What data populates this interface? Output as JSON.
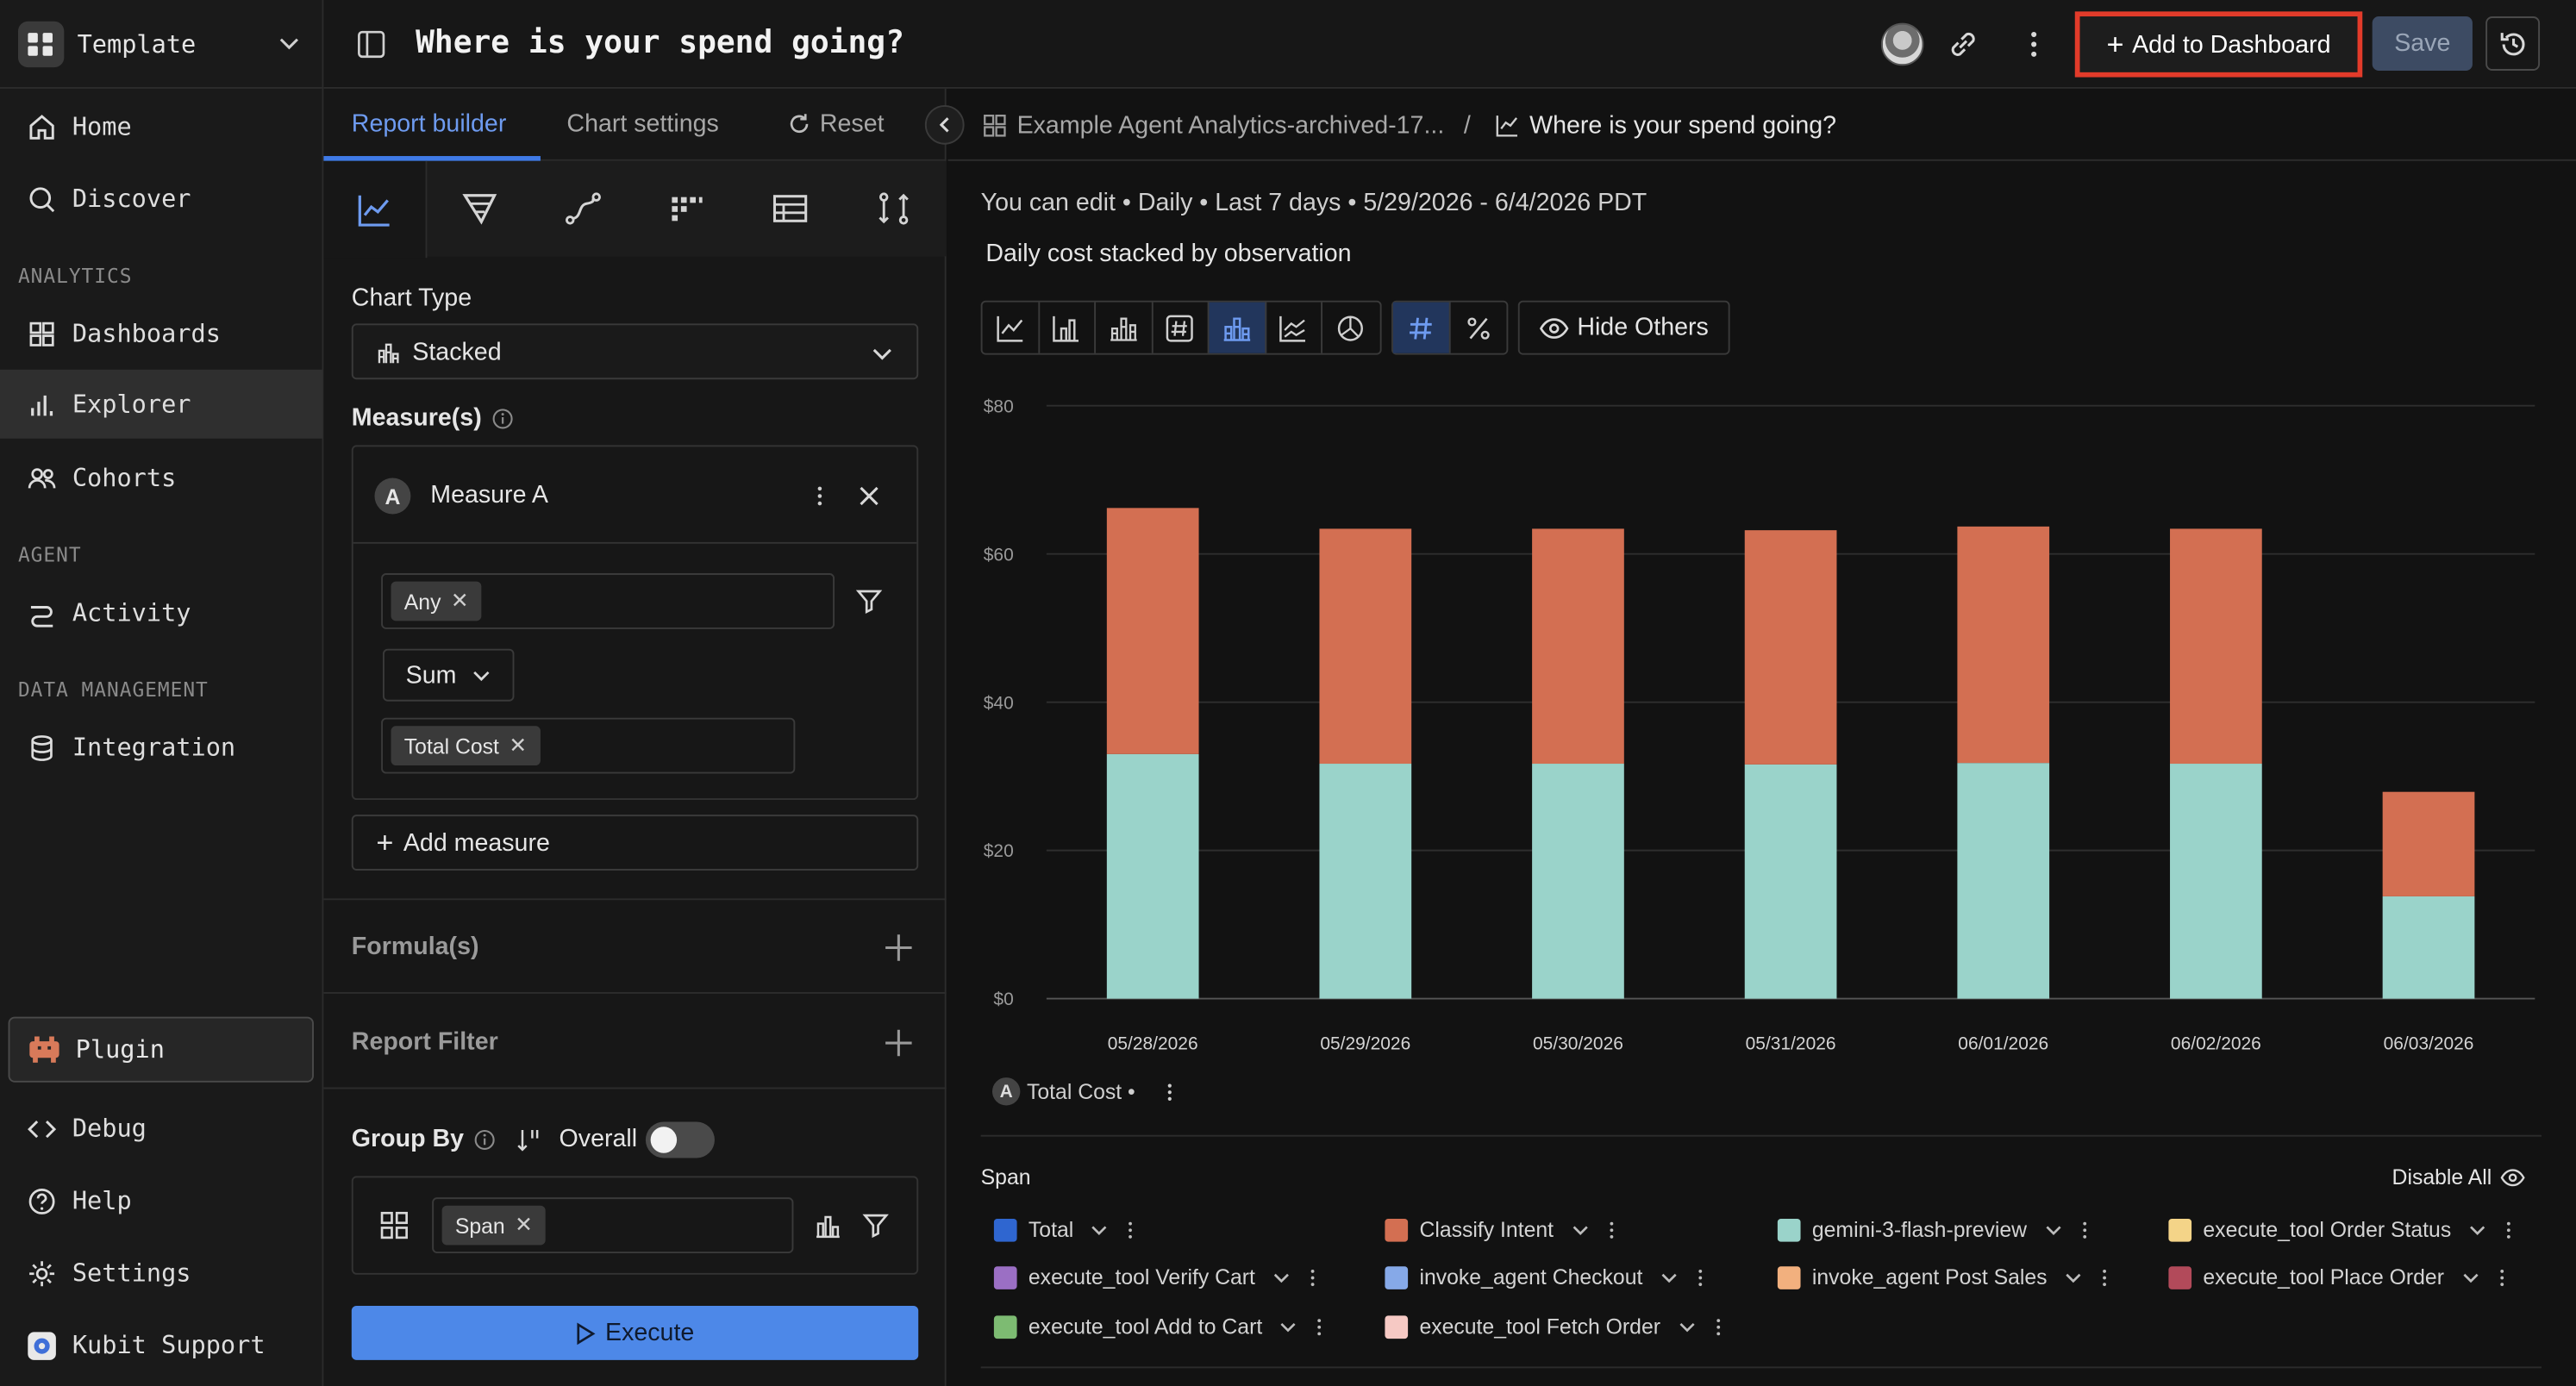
{
  "workspace": {
    "name": "Template"
  },
  "sidebar": {
    "items": [
      {
        "label": "Home",
        "icon": "home-icon"
      },
      {
        "label": "Discover",
        "icon": "search-icon"
      },
      {
        "label": "Dashboards",
        "icon": "dashboard-icon"
      },
      {
        "label": "Explorer",
        "icon": "bar-chart-icon"
      },
      {
        "label": "Cohorts",
        "icon": "users-icon"
      },
      {
        "label": "Activity",
        "icon": "activity-icon"
      },
      {
        "label": "Integration",
        "icon": "database-icon"
      },
      {
        "label": "Plugin",
        "icon": "plugin-icon"
      },
      {
        "label": "Debug",
        "icon": "code-icon"
      },
      {
        "label": "Help",
        "icon": "help-icon"
      },
      {
        "label": "Settings",
        "icon": "gear-icon"
      },
      {
        "label": "Kubit Support",
        "icon": "support-icon"
      }
    ],
    "sections": {
      "analytics": "ANALYTICS",
      "agent": "AGENT",
      "data_management": "DATA MANAGEMENT"
    },
    "active": "Explorer"
  },
  "header": {
    "title": "Where is your spend going?",
    "add_to_dashboard": "Add to Dashboard",
    "save": "Save"
  },
  "builder": {
    "tabs": {
      "report_builder": "Report builder",
      "chart_settings": "Chart settings",
      "reset": "Reset"
    },
    "chart_type_label": "Chart Type",
    "chart_type_value": "Stacked",
    "measures_label": "Measure(s)",
    "measure": {
      "badge": "A",
      "name": "Measure A",
      "event_chip": "Any",
      "aggregation": "Sum",
      "property_chip": "Total Cost"
    },
    "add_measure": "Add measure",
    "formulas_label": "Formula(s)",
    "report_filter_label": "Report Filter",
    "group_by_label": "Group By",
    "overall_label": "Overall",
    "group_chip": "Span",
    "execute": "Execute"
  },
  "breadcrumb": {
    "parent": "Example Agent Analytics-archived-17...",
    "separator": "/",
    "current": "Where is your spend going?"
  },
  "report": {
    "meta": "You can edit • Daily • Last 7 days • 5/29/2026 - 6/4/2026 PDT",
    "subtitle": "Daily cost stacked by observation",
    "hide_others": "Hide Others",
    "series_tag": "Total Cost •"
  },
  "chart_data": {
    "type": "bar",
    "stacked": true,
    "categories": [
      "05/28/2026",
      "05/29/2026",
      "05/30/2026",
      "05/31/2026",
      "06/01/2026",
      "06/02/2026",
      "06/03/2026"
    ],
    "series": [
      {
        "name": "gemini-3-flash-preview",
        "color": "#9ad3ca",
        "values": [
          33,
          31.7,
          31.7,
          31.6,
          31.8,
          31.7,
          13.8
        ]
      },
      {
        "name": "Classify Intent",
        "color": "#d36f52",
        "values": [
          33.2,
          31.7,
          31.7,
          31.6,
          31.9,
          31.7,
          14.1
        ]
      }
    ],
    "y_ticks": [
      "$0",
      "$20",
      "$40",
      "$60",
      "$80"
    ],
    "ylim": [
      0,
      80
    ],
    "grid": true
  },
  "legend": {
    "title": "Span",
    "disable_all": "Disable All",
    "items": [
      {
        "label": "Total",
        "color": "#2f66d0"
      },
      {
        "label": "Classify Intent",
        "color": "#d36f52"
      },
      {
        "label": "gemini-3-flash-preview",
        "color": "#9ad3ca"
      },
      {
        "label": "execute_tool Order Status",
        "color": "#f4d488"
      },
      {
        "label": "execute_tool Verify Cart",
        "color": "#9b6fc4"
      },
      {
        "label": "invoke_agent Checkout",
        "color": "#86a9e8"
      },
      {
        "label": "invoke_agent Post Sales",
        "color": "#f2b07e"
      },
      {
        "label": "execute_tool Place Order",
        "color": "#b24a5a"
      },
      {
        "label": "execute_tool Add to Cart",
        "color": "#7dbb72"
      },
      {
        "label": "execute_tool Fetch Order",
        "color": "#f6c9c4"
      }
    ]
  }
}
